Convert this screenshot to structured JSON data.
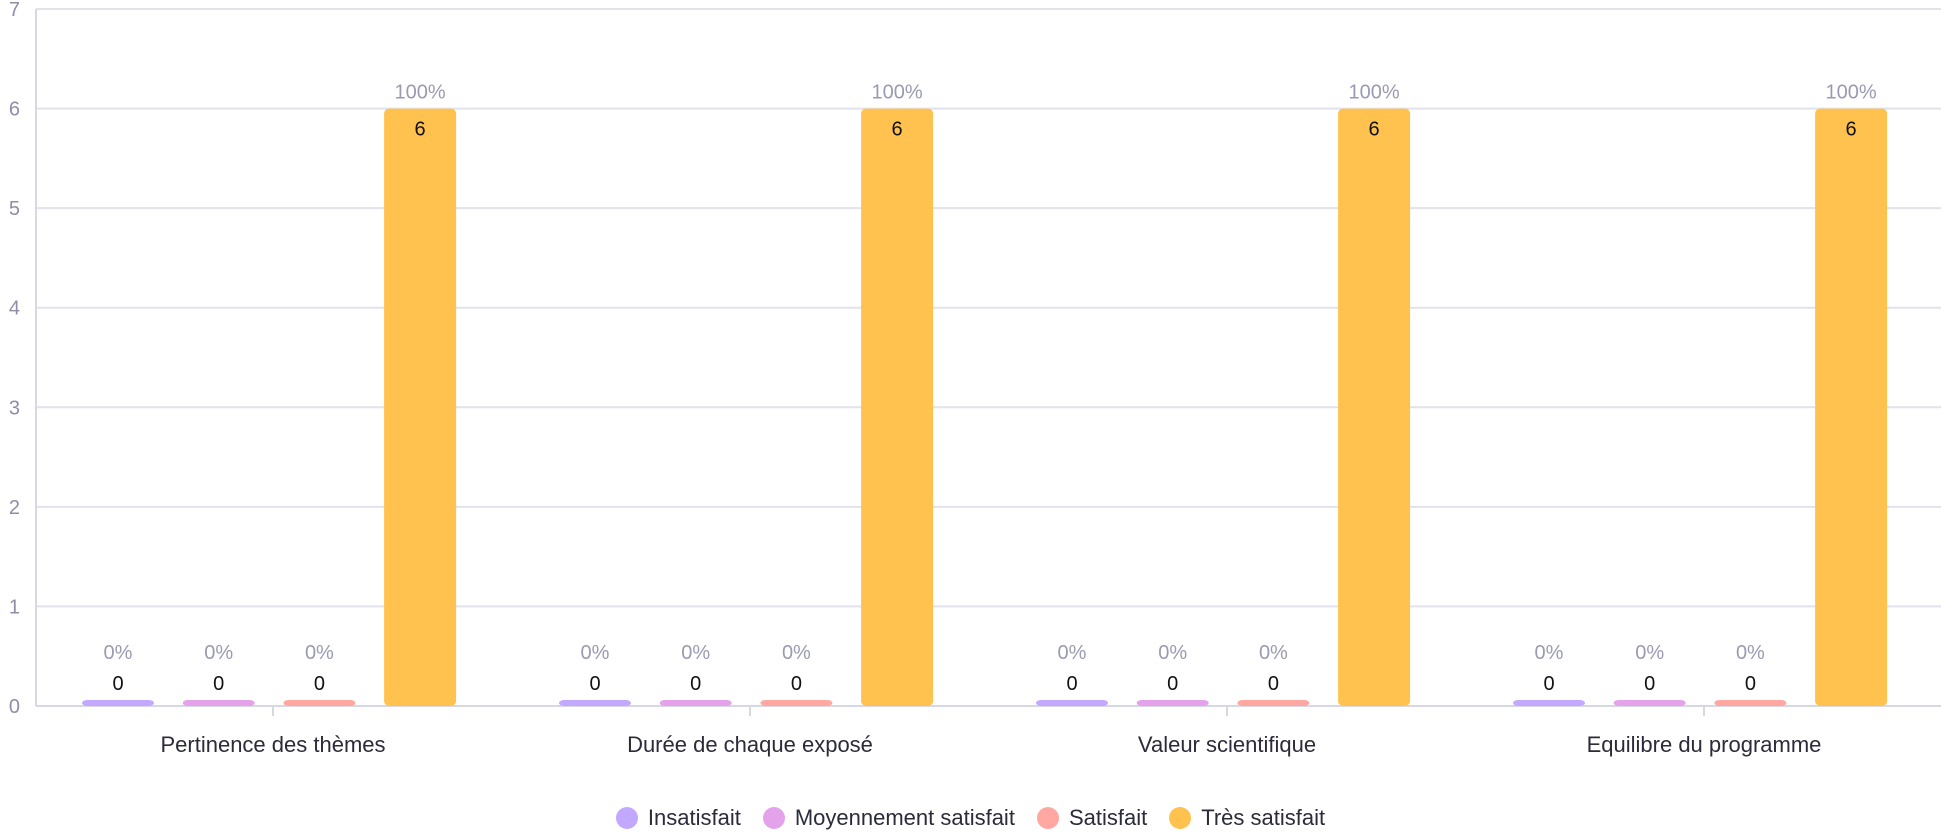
{
  "chart_data": {
    "type": "bar",
    "title": "",
    "xlabel": "",
    "ylabel": "",
    "ylim": [
      0,
      7
    ],
    "yticks": [
      0,
      1,
      2,
      3,
      4,
      5,
      6,
      7
    ],
    "grid": true,
    "legend_position": "bottom",
    "categories": [
      "Pertinence des thèmes",
      "Durée de chaque exposé",
      "Valeur scientifique",
      "Equilibre du programme"
    ],
    "series": [
      {
        "name": "Insatisfait",
        "color": "#c3a8ff",
        "values": [
          0,
          0,
          0,
          0
        ],
        "percent_labels": [
          "0%",
          "0%",
          "0%",
          "0%"
        ]
      },
      {
        "name": "Moyennement satisfait",
        "color": "#e3a2ea",
        "values": [
          0,
          0,
          0,
          0
        ],
        "percent_labels": [
          "0%",
          "0%",
          "0%",
          "0%"
        ]
      },
      {
        "name": "Satisfait",
        "color": "#ffa7a0",
        "values": [
          0,
          0,
          0,
          0
        ],
        "percent_labels": [
          "0%",
          "0%",
          "0%",
          "0%"
        ]
      },
      {
        "name": "Très satisfait",
        "color": "#ffc24f",
        "values": [
          6,
          6,
          6,
          6
        ],
        "percent_labels": [
          "100%",
          "100%",
          "100%",
          "100%"
        ]
      }
    ]
  }
}
